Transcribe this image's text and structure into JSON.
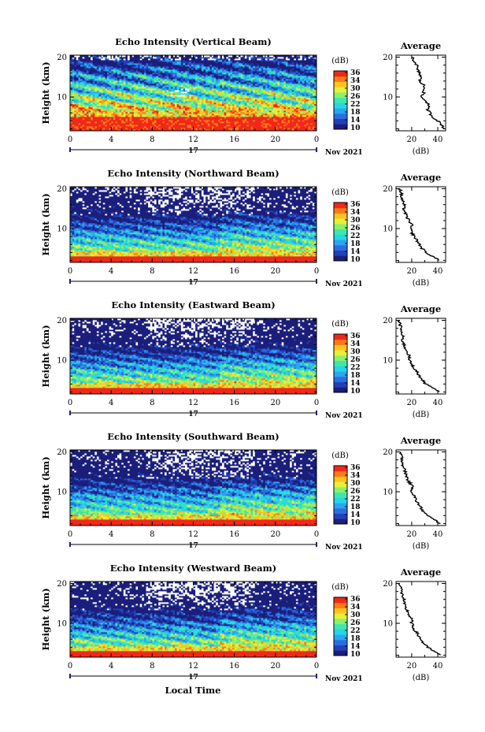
{
  "figure": {
    "xlabel": "Local Time",
    "date_label": "Nov 2021",
    "day_label": "17",
    "colorbar_unit": "(dB)",
    "colorbar_ticks": [
      "36",
      "34",
      "30",
      "26",
      "22",
      "18",
      "14",
      "10"
    ],
    "average_title": "Average",
    "average_xlabel": "(dB)",
    "ylabel": "Height (km)",
    "colormap": [
      "#1b1e7a",
      "#2340b8",
      "#2b6ee0",
      "#2aa6f0",
      "#25d6e6",
      "#3ee6b0",
      "#8ef06a",
      "#e6f03a",
      "#ffc21e",
      "#ff7a14",
      "#f0281a"
    ]
  },
  "chart_data": [
    {
      "type": "heatmap",
      "title": "Echo Intensity (Vertical Beam)",
      "xlabel": "Local Time",
      "ylabel": "Height (km)",
      "x_ticks": [
        "0",
        "4",
        "8",
        "12",
        "16",
        "20",
        "0"
      ],
      "xlim": [
        0,
        24
      ],
      "y_ticks": [
        "20",
        "10"
      ],
      "ylim": [
        1.5,
        20.5
      ],
      "colorbar_range": [
        10,
        38
      ],
      "average_profile": {
        "xlabel": "(dB)",
        "x_ticks": [
          "20",
          "40"
        ],
        "xlim": [
          8,
          46
        ],
        "heights": [
          20,
          19,
          18,
          17,
          16,
          15,
          14,
          13,
          12,
          11,
          10,
          9,
          8,
          7,
          6,
          5,
          4,
          3,
          2
        ],
        "values": [
          20,
          22,
          24,
          24,
          26,
          27,
          26,
          29,
          30,
          29,
          27,
          31,
          33,
          32,
          34,
          36,
          40,
          43,
          45
        ]
      }
    },
    {
      "type": "heatmap",
      "title": "Echo Intensity (Northward Beam)",
      "xlabel": "Local Time",
      "ylabel": "Height (km)",
      "x_ticks": [
        "0",
        "4",
        "8",
        "12",
        "16",
        "20",
        "0"
      ],
      "xlim": [
        0,
        24
      ],
      "y_ticks": [
        "20",
        "10"
      ],
      "ylim": [
        1.5,
        20.5
      ],
      "colorbar_range": [
        10,
        38
      ],
      "average_profile": {
        "xlabel": "(dB)",
        "x_ticks": [
          "20",
          "40"
        ],
        "xlim": [
          8,
          46
        ],
        "heights": [
          20,
          19,
          18,
          17,
          16,
          15,
          14,
          13,
          12,
          11,
          10,
          9,
          8,
          7,
          6,
          5,
          4,
          3,
          2
        ],
        "values": [
          11,
          12,
          12,
          13,
          14,
          14,
          15,
          16,
          18,
          20,
          19,
          20,
          22,
          24,
          26,
          28,
          31,
          36,
          41
        ]
      }
    },
    {
      "type": "heatmap",
      "title": "Echo Intensity (Eastward Beam)",
      "xlabel": "Local Time",
      "ylabel": "Height (km)",
      "x_ticks": [
        "0",
        "4",
        "8",
        "12",
        "16",
        "20",
        "0"
      ],
      "xlim": [
        0,
        24
      ],
      "y_ticks": [
        "20",
        "10"
      ],
      "ylim": [
        1.5,
        20.5
      ],
      "colorbar_range": [
        10,
        38
      ],
      "average_profile": {
        "xlabel": "(dB)",
        "x_ticks": [
          "20",
          "40"
        ],
        "xlim": [
          8,
          46
        ],
        "heights": [
          20,
          19,
          18,
          17,
          16,
          15,
          14,
          13,
          12,
          11,
          10,
          9,
          8,
          7,
          6,
          5,
          4,
          3,
          2
        ],
        "values": [
          10,
          11,
          12,
          12,
          13,
          13,
          14,
          15,
          17,
          18,
          18,
          20,
          22,
          24,
          26,
          28,
          31,
          36,
          41
        ]
      }
    },
    {
      "type": "heatmap",
      "title": "Echo Intensity (Southward Beam)",
      "xlabel": "Local Time",
      "ylabel": "Height (km)",
      "x_ticks": [
        "0",
        "4",
        "8",
        "12",
        "16",
        "20",
        "0"
      ],
      "xlim": [
        0,
        24
      ],
      "y_ticks": [
        "20",
        "10"
      ],
      "ylim": [
        1.5,
        20.5
      ],
      "colorbar_range": [
        10,
        38
      ],
      "average_profile": {
        "xlabel": "(dB)",
        "x_ticks": [
          "20",
          "40"
        ],
        "xlim": [
          8,
          46
        ],
        "heights": [
          20,
          19,
          18,
          17,
          16,
          15,
          14,
          13,
          12,
          11,
          10,
          9,
          8,
          7,
          6,
          5,
          4,
          3,
          2
        ],
        "values": [
          11,
          12,
          13,
          13,
          14,
          15,
          16,
          17,
          19,
          21,
          20,
          22,
          23,
          25,
          27,
          29,
          32,
          37,
          42
        ]
      }
    },
    {
      "type": "heatmap",
      "title": "Echo Intensity (Westward Beam)",
      "xlabel": "Local Time",
      "ylabel": "Height (km)",
      "x_ticks": [
        "0",
        "4",
        "8",
        "12",
        "16",
        "20",
        "0"
      ],
      "xlim": [
        0,
        24
      ],
      "y_ticks": [
        "20",
        "10"
      ],
      "ylim": [
        1.5,
        20.5
      ],
      "colorbar_range": [
        10,
        38
      ],
      "average_profile": {
        "xlabel": "(dB)",
        "x_ticks": [
          "20",
          "40"
        ],
        "xlim": [
          8,
          46
        ],
        "heights": [
          20,
          19,
          18,
          17,
          16,
          15,
          14,
          13,
          12,
          11,
          10,
          9,
          8,
          7,
          6,
          5,
          4,
          3,
          2
        ],
        "values": [
          11,
          12,
          12,
          13,
          14,
          14,
          15,
          17,
          18,
          20,
          20,
          21,
          23,
          25,
          27,
          29,
          32,
          37,
          42
        ]
      }
    }
  ]
}
